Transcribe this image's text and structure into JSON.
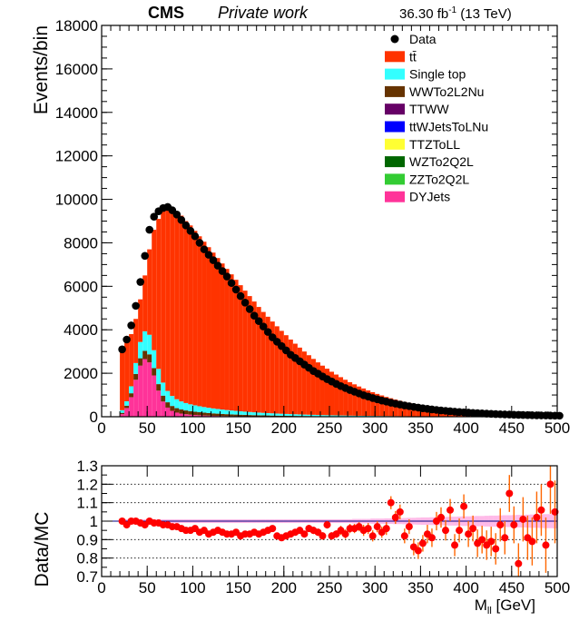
{
  "header": {
    "experiment": "CMS",
    "status": "Private work",
    "lumi_value": "36.30 fb",
    "lumi_exp": "-1",
    "lumi_energy": " (13 TeV)"
  },
  "legend": {
    "items": [
      {
        "label": "Data",
        "kind": "marker",
        "color": "#000000"
      },
      {
        "label": "tt̄",
        "kind": "fill",
        "color": "#ff3300"
      },
      {
        "label": "Single top",
        "kind": "fill",
        "color": "#33ffff"
      },
      {
        "label": "WWTo2L2Nu",
        "kind": "fill",
        "color": "#663300"
      },
      {
        "label": "TTWW",
        "kind": "fill",
        "color": "#660066"
      },
      {
        "label": "ttWJetsToLNu",
        "kind": "fill",
        "color": "#0000ff"
      },
      {
        "label": "TTZToLL",
        "kind": "fill",
        "color": "#ffff33"
      },
      {
        "label": "WZTo2Q2L",
        "kind": "fill",
        "color": "#006600"
      },
      {
        "label": "ZZTo2Q2L",
        "kind": "fill",
        "color": "#33cc33"
      },
      {
        "label": "DYJets",
        "kind": "fill",
        "color": "#ff3399"
      }
    ]
  },
  "chart_data": [
    {
      "type": "bar",
      "ylabel": "Events/bin",
      "xlim": [
        0,
        500
      ],
      "ylim": [
        0,
        18000
      ],
      "yticks": [
        0,
        2000,
        4000,
        6000,
        8000,
        10000,
        12000,
        14000,
        16000,
        18000
      ],
      "xticks": [
        0,
        50,
        100,
        150,
        200,
        250,
        300,
        350,
        400,
        450,
        500
      ],
      "bin_width": 5,
      "x_start": 20,
      "mc_total": [
        3100,
        3400,
        3800,
        4500,
        5400,
        6500,
        7700,
        8600,
        9100,
        9500,
        9550,
        9600,
        9450,
        9250,
        9000,
        8800,
        8550,
        8300,
        8050,
        7800,
        7550,
        7300,
        7050,
        6800,
        6550,
        6300,
        6050,
        5800,
        5550,
        5300,
        5050,
        4820,
        4600,
        4380,
        4160,
        3950,
        3750,
        3550,
        3360,
        3180,
        3000,
        2830,
        2660,
        2500,
        2350,
        2210,
        2070,
        1940,
        1820,
        1700,
        1590,
        1490,
        1390,
        1300,
        1210,
        1130,
        1050,
        980,
        910,
        850,
        790,
        735,
        685,
        640,
        595,
        555,
        515,
        480,
        445,
        415,
        385,
        358,
        333,
        310,
        288,
        268,
        250,
        232,
        216,
        201,
        187,
        174,
        162,
        151,
        141,
        131,
        122,
        114,
        106,
        99,
        92,
        86,
        80,
        75,
        70,
        65,
        61
      ],
      "single_top": [
        120,
        200,
        320,
        500,
        750,
        900,
        900,
        820,
        700,
        600,
        520,
        460,
        410,
        370,
        340,
        315,
        295,
        275,
        258,
        242,
        228,
        214,
        201,
        189,
        178,
        167,
        157,
        148,
        139,
        131,
        123,
        116,
        109,
        102,
        96,
        90,
        85,
        80,
        75,
        70,
        66,
        62,
        58,
        55,
        51,
        48,
        45,
        43,
        40,
        38,
        35,
        33,
        31,
        29,
        27,
        26,
        24,
        23,
        21,
        20,
        19,
        18,
        17,
        16,
        15,
        14,
        13,
        12,
        11,
        11,
        10,
        9,
        9,
        8,
        8,
        7,
        7,
        6,
        6,
        5,
        5,
        5,
        4,
        4,
        4,
        4,
        3,
        3,
        3,
        3,
        3,
        2,
        2,
        2,
        2,
        2,
        2
      ],
      "wwto2l2nu": [
        60,
        110,
        180,
        270,
        340,
        380,
        370,
        340,
        300,
        270,
        245,
        225,
        205,
        190,
        175,
        162,
        150,
        140,
        130,
        121,
        112,
        104,
        97,
        90,
        84,
        78,
        73,
        68,
        63,
        59,
        55,
        51,
        48,
        45,
        42,
        39,
        36,
        34,
        32,
        30,
        28,
        26,
        24,
        22,
        21,
        20,
        18,
        17,
        16,
        15,
        14,
        13,
        12,
        11,
        10,
        10,
        9,
        8,
        8,
        7,
        7,
        6,
        6,
        5,
        5,
        5,
        4,
        4,
        4,
        4,
        3,
        3,
        3,
        3,
        3,
        2,
        2,
        2,
        2,
        2,
        2,
        2,
        2,
        2,
        1,
        1,
        1,
        1,
        1,
        1,
        1,
        1,
        1,
        1,
        1,
        1,
        1
      ],
      "dyjets": [
        120,
        400,
        900,
        1700,
        2350,
        2650,
        2500,
        1900,
        1200,
        700,
        420,
        270,
        190,
        145,
        115,
        95,
        80,
        68,
        58,
        50,
        43,
        38,
        33,
        29,
        26,
        23,
        20,
        18,
        16,
        14,
        13,
        12,
        11,
        10,
        9,
        8,
        8,
        7,
        6,
        6,
        5,
        5,
        5,
        4,
        4,
        4,
        3,
        3,
        3,
        3,
        3,
        2,
        2,
        2,
        2,
        2,
        2,
        2,
        2,
        1,
        1,
        1,
        1,
        1,
        1,
        1,
        1,
        1,
        1,
        1,
        1,
        1,
        1,
        1,
        1,
        1,
        1,
        1,
        1,
        1,
        1,
        1,
        1,
        1,
        1,
        1,
        1,
        1,
        1,
        1,
        1,
        1,
        1,
        1,
        1,
        1,
        1
      ],
      "data": [
        3100,
        3550,
        4200,
        5100,
        6200,
        7400,
        8600,
        9200,
        9450,
        9600,
        9650,
        9500,
        9300,
        9050,
        8800,
        8550,
        8300,
        8000,
        7700,
        7450,
        7200,
        6950,
        6700,
        6450,
        6150,
        5850,
        5550,
        5250,
        4950,
        4650,
        4400,
        4150,
        3900,
        3650,
        3450,
        3250,
        3050,
        2850,
        2700,
        2550,
        2400,
        2250,
        2100,
        1980,
        1850,
        1730,
        1620,
        1510,
        1410,
        1320,
        1230,
        1150,
        1070,
        990,
        925,
        860,
        800,
        745,
        695,
        645,
        600,
        560,
        520,
        485,
        450,
        420,
        390,
        362,
        337,
        313,
        291,
        271,
        252,
        234,
        218,
        203,
        189,
        176,
        164,
        153,
        142,
        132,
        123,
        115,
        107,
        100,
        93,
        87,
        81,
        76,
        71,
        66,
        62,
        58,
        54,
        50,
        47
      ],
      "series": [
        {
          "name": "Data"
        },
        {
          "name": "tt̄"
        },
        {
          "name": "Single top"
        },
        {
          "name": "WWTo2L2Nu"
        },
        {
          "name": "DYJets"
        }
      ]
    },
    {
      "type": "scatter",
      "xlabel": "M",
      "xlabel_sub": "ll",
      "xlabel_unit": " [GeV]",
      "ylabel": "Data/MC",
      "xlim": [
        0,
        500
      ],
      "ylim": [
        0.7,
        1.3
      ],
      "yticks": [
        0.7,
        0.8,
        0.9,
        1,
        1.1,
        1.2,
        1.3
      ],
      "ytick_labels": [
        "0.7",
        "0.8",
        "0.9",
        "1",
        "1.1",
        "1.2",
        "1.3"
      ],
      "xticks": [
        0,
        50,
        100,
        150,
        200,
        250,
        300,
        350,
        400,
        450,
        500
      ],
      "x": [
        22.5,
        27.5,
        32.5,
        37.5,
        42.5,
        47.5,
        52.5,
        57.5,
        62.5,
        67.5,
        72.5,
        77.5,
        82.5,
        87.5,
        92.5,
        97.5,
        102.5,
        107.5,
        112.5,
        117.5,
        122.5,
        127.5,
        132.5,
        137.5,
        142.5,
        147.5,
        152.5,
        157.5,
        162.5,
        167.5,
        172.5,
        177.5,
        182.5,
        187.5,
        192.5,
        197.5,
        202.5,
        207.5,
        212.5,
        217.5,
        222.5,
        227.5,
        232.5,
        237.5,
        242.5,
        247.5,
        252.5,
        257.5,
        262.5,
        267.5,
        272.5,
        277.5,
        282.5,
        287.5,
        292.5,
        297.5,
        302.5,
        307.5,
        312.5,
        317.5,
        322.5,
        327.5,
        332.5,
        337.5,
        342.5,
        347.5,
        352.5,
        357.5,
        362.5,
        367.5,
        372.5,
        377.5,
        382.5,
        387.5,
        392.5,
        397.5,
        402.5,
        407.5,
        412.5,
        417.5,
        422.5,
        427.5,
        432.5,
        437.5,
        442.5,
        447.5,
        452.5,
        457.5,
        462.5,
        467.5,
        472.5,
        477.5,
        482.5,
        487.5,
        492.5,
        497.5
      ],
      "ratio": [
        1.0,
        0.98,
        1.0,
        1.0,
        0.99,
        0.98,
        1.0,
        0.99,
        0.99,
        0.98,
        0.98,
        0.97,
        0.97,
        0.96,
        0.95,
        0.95,
        0.96,
        0.94,
        0.95,
        0.93,
        0.94,
        0.95,
        0.94,
        0.93,
        0.93,
        0.94,
        0.92,
        0.93,
        0.93,
        0.94,
        0.93,
        0.94,
        0.95,
        0.96,
        0.92,
        0.91,
        0.92,
        0.93,
        0.94,
        0.95,
        0.93,
        0.96,
        0.95,
        0.94,
        0.92,
        0.98,
        0.92,
        0.93,
        0.95,
        0.93,
        0.96,
        0.96,
        0.97,
        0.95,
        0.96,
        0.92,
        0.97,
        0.94,
        0.96,
        1.1,
        1.02,
        1.05,
        0.92,
        0.97,
        0.86,
        0.84,
        0.88,
        0.93,
        0.91,
        1.0,
        1.02,
        0.95,
        1.06,
        0.87,
        0.95,
        1.08,
        0.93,
        0.96,
        0.88,
        0.9,
        0.87,
        0.89,
        0.85,
        0.98,
        0.91,
        1.15,
        0.98,
        0.77,
        1.01,
        0.91,
        0.89,
        1.02,
        1.06,
        0.87,
        1.2,
        1.05
      ],
      "errors": [
        0.01,
        0.01,
        0.01,
        0.01,
        0.01,
        0.01,
        0.01,
        0.01,
        0.01,
        0.01,
        0.01,
        0.01,
        0.01,
        0.01,
        0.01,
        0.01,
        0.01,
        0.01,
        0.01,
        0.01,
        0.01,
        0.01,
        0.01,
        0.01,
        0.01,
        0.01,
        0.01,
        0.01,
        0.01,
        0.01,
        0.01,
        0.01,
        0.01,
        0.015,
        0.015,
        0.015,
        0.015,
        0.015,
        0.015,
        0.015,
        0.015,
        0.02,
        0.02,
        0.02,
        0.02,
        0.02,
        0.02,
        0.02,
        0.025,
        0.025,
        0.025,
        0.025,
        0.025,
        0.03,
        0.03,
        0.03,
        0.03,
        0.03,
        0.035,
        0.035,
        0.035,
        0.04,
        0.04,
        0.04,
        0.045,
        0.045,
        0.045,
        0.05,
        0.05,
        0.05,
        0.055,
        0.055,
        0.06,
        0.06,
        0.065,
        0.065,
        0.07,
        0.07,
        0.075,
        0.075,
        0.08,
        0.08,
        0.085,
        0.09,
        0.09,
        0.1,
        0.1,
        0.11,
        0.12,
        0.12,
        0.13,
        0.14,
        0.14,
        0.15,
        0.16,
        0.17
      ],
      "mc_unc_band": [
        0.01,
        0.01,
        0.01,
        0.01,
        0.01,
        0.01,
        0.01,
        0.01,
        0.01,
        0.01,
        0.01,
        0.01,
        0.01,
        0.01,
        0.01,
        0.01,
        0.01,
        0.01,
        0.01,
        0.01,
        0.01,
        0.01,
        0.01,
        0.01,
        0.01,
        0.01,
        0.01,
        0.01,
        0.01,
        0.01,
        0.01,
        0.01,
        0.01,
        0.01,
        0.01,
        0.01,
        0.01,
        0.01,
        0.01,
        0.01,
        0.01,
        0.01,
        0.01,
        0.01,
        0.01,
        0.01,
        0.01,
        0.01,
        0.01,
        0.01,
        0.01,
        0.012,
        0.012,
        0.012,
        0.012,
        0.014,
        0.014,
        0.014,
        0.015,
        0.015,
        0.016,
        0.016,
        0.017,
        0.018,
        0.018,
        0.019,
        0.02,
        0.02,
        0.021,
        0.022,
        0.022,
        0.023,
        0.024,
        0.024,
        0.025,
        0.026,
        0.026,
        0.027,
        0.028,
        0.028,
        0.029,
        0.03,
        0.03,
        0.031,
        0.032,
        0.032,
        0.033,
        0.034,
        0.034,
        0.035,
        0.036,
        0.036,
        0.037,
        0.038,
        0.038,
        0.039
      ],
      "reference_line": 1,
      "dotted_grid": true,
      "series": [
        {
          "name": "Data/MC"
        }
      ]
    }
  ]
}
